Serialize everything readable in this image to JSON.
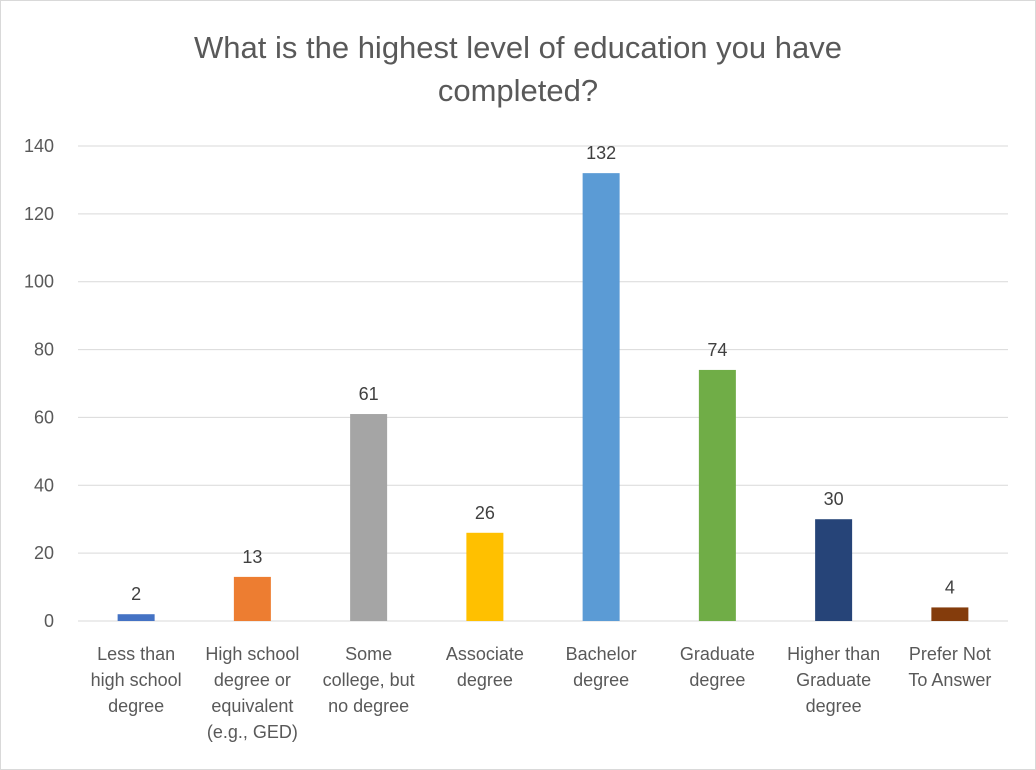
{
  "chart_data": {
    "type": "bar",
    "title": "What is the highest level of education you have completed?",
    "title_lines": [
      "What is the highest level of education you have",
      "completed?"
    ],
    "categories": [
      [
        "Less than",
        "high school",
        "degree"
      ],
      [
        "High school",
        "degree or",
        "equivalent",
        "(e.g., GED)"
      ],
      [
        "Some",
        "college, but",
        "no degree"
      ],
      [
        "Associate",
        "degree"
      ],
      [
        "Bachelor",
        "degree"
      ],
      [
        "Graduate",
        "degree"
      ],
      [
        "Higher than",
        "Graduate",
        "degree"
      ],
      [
        "Prefer Not",
        "To Answer"
      ]
    ],
    "values": [
      2,
      13,
      61,
      26,
      132,
      74,
      30,
      4
    ],
    "colors": [
      "#4472C4",
      "#ED7D31",
      "#A5A5A5",
      "#FFC000",
      "#5B9BD5",
      "#70AD47",
      "#264478",
      "#843C0C"
    ],
    "ylim": [
      0,
      140
    ],
    "yticks": [
      0,
      20,
      40,
      60,
      80,
      100,
      120,
      140
    ],
    "grid": true,
    "legend": "none",
    "xlabel": "",
    "ylabel": ""
  }
}
